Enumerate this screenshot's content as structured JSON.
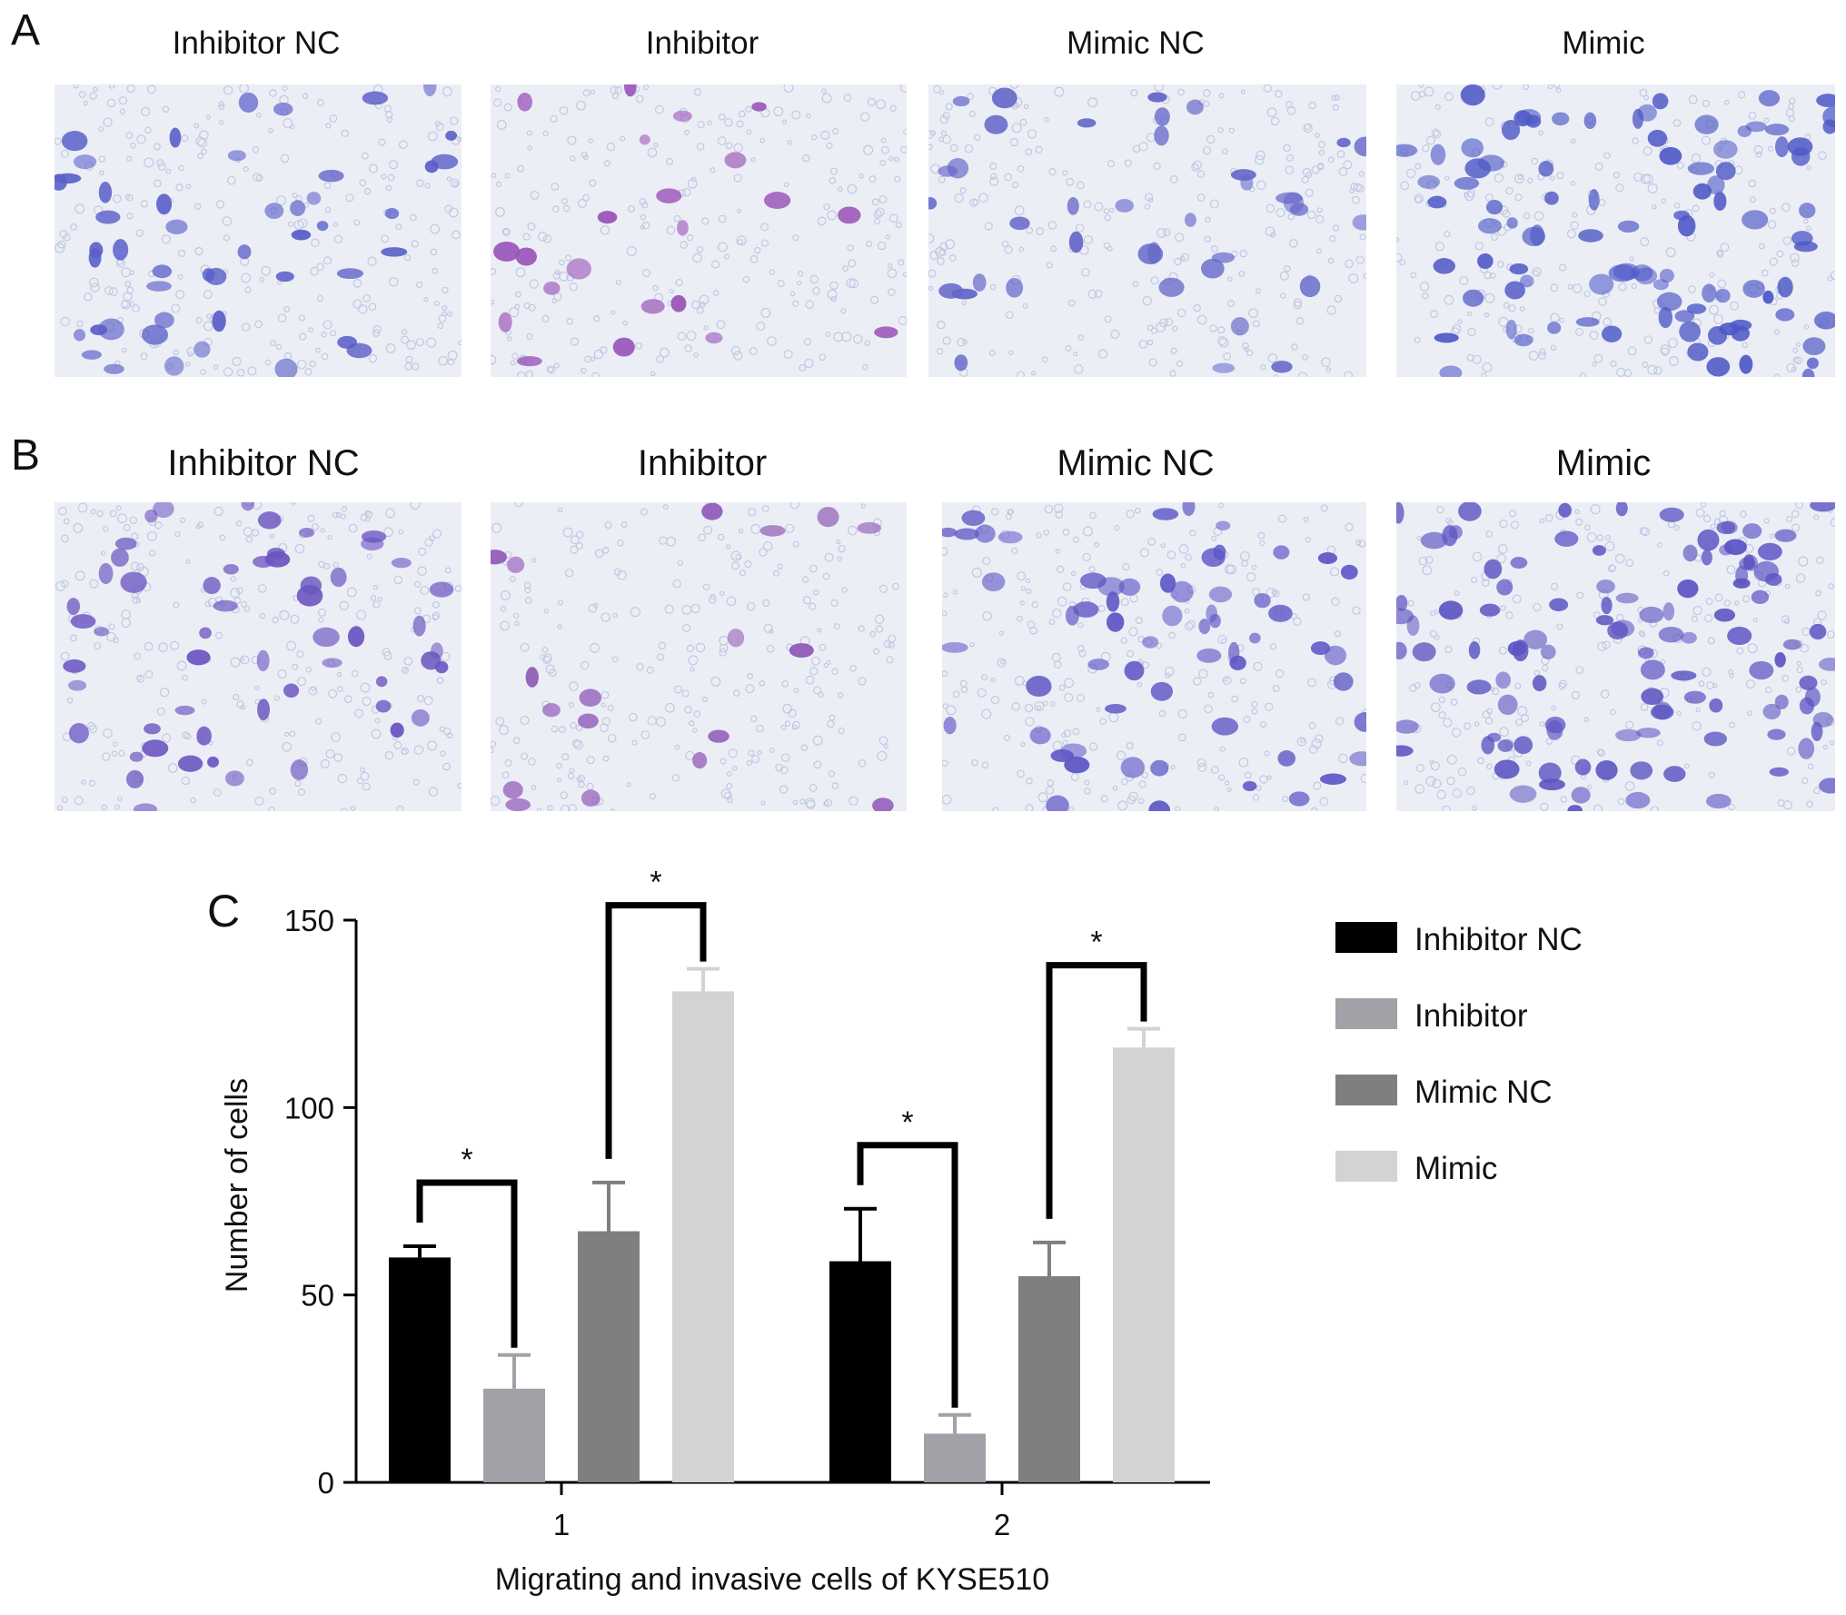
{
  "panels": {
    "A": {
      "letter": "A",
      "labels": [
        "Inhibitor NC",
        "Inhibitor",
        "Mimic NC",
        "Mimic"
      ],
      "cell_density": [
        48,
        22,
        38,
        95
      ],
      "cell_tint": [
        "#5a5fc8",
        "#9a55b8",
        "#6466c8",
        "#4e58c6"
      ]
    },
    "B": {
      "letter": "B",
      "labels": [
        "Inhibitor NC",
        "Inhibitor",
        "Mimic NC",
        "Mimic"
      ],
      "cell_density": [
        55,
        18,
        60,
        110
      ],
      "cell_tint": [
        "#6a54c0",
        "#8e56b6",
        "#5f58c6",
        "#5c55c2"
      ]
    }
  },
  "chart_data": {
    "type": "bar",
    "panel_letter": "C",
    "categories": [
      "1",
      "2"
    ],
    "series": [
      {
        "name": "Inhibitor NC",
        "color": "#000000",
        "values": [
          60,
          59
        ],
        "errors": [
          3,
          14
        ]
      },
      {
        "name": "Inhibitor",
        "color": "#a2a1a7",
        "values": [
          25,
          13
        ],
        "errors": [
          9,
          5
        ]
      },
      {
        "name": "Mimic NC",
        "color": "#7f7f7f",
        "values": [
          67,
          55
        ],
        "errors": [
          13,
          9
        ]
      },
      {
        "name": "Mimic",
        "color": "#d3d3d3",
        "values": [
          131,
          116
        ],
        "errors": [
          6,
          5
        ]
      }
    ],
    "significance": [
      {
        "category": "1",
        "from_series": 0,
        "to_series": 1,
        "label": "*"
      },
      {
        "category": "1",
        "from_series": 2,
        "to_series": 3,
        "label": "*"
      },
      {
        "category": "2",
        "from_series": 0,
        "to_series": 1,
        "label": "*"
      },
      {
        "category": "2",
        "from_series": 2,
        "to_series": 3,
        "label": "*"
      }
    ],
    "xlabel": "Migrating and invasive cells of KYSE510",
    "ylabel": "Number of cells",
    "ylim": [
      0,
      150
    ],
    "yticks": [
      0,
      50,
      100,
      150
    ],
    "grid": false,
    "legend": "right"
  }
}
